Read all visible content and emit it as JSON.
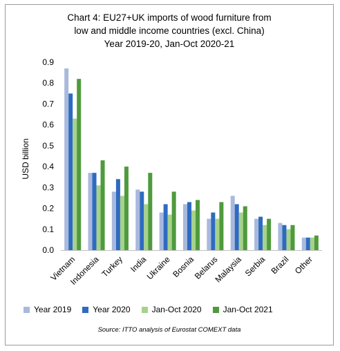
{
  "chart_data": {
    "type": "bar",
    "title": [
      "Chart 4: EU27+UK imports of wood furniture from",
      "low and middle income countries (excl. China)",
      "Year 2019-20, Jan-Oct 2020-21"
    ],
    "ylabel": "USD billion",
    "xlabel": "",
    "ylim": [
      0,
      0.9
    ],
    "yticks": [
      "0.0",
      "0.1",
      "0.2",
      "0.3",
      "0.4",
      "0.5",
      "0.6",
      "0.7",
      "0.8",
      "0.9"
    ],
    "grid": false,
    "legend_position": "bottom",
    "categories": [
      "Vietnam",
      "Indonesia",
      "Turkey",
      "India",
      "Ukraine",
      "Bosnia",
      "Belarus",
      "Malaysia",
      "Serbia",
      "Brazil",
      "Other"
    ],
    "series": [
      {
        "name": "Year 2019",
        "color": "#a9b9de",
        "values": [
          0.87,
          0.37,
          0.28,
          0.29,
          0.18,
          0.22,
          0.15,
          0.26,
          0.15,
          0.13,
          0.06
        ]
      },
      {
        "name": "Year 2020",
        "color": "#2e6bc0",
        "values": [
          0.75,
          0.37,
          0.34,
          0.28,
          0.22,
          0.23,
          0.18,
          0.22,
          0.16,
          0.12,
          0.06
        ]
      },
      {
        "name": "Jan-Oct 2020",
        "color": "#a6d28b",
        "values": [
          0.63,
          0.31,
          0.26,
          0.22,
          0.17,
          0.19,
          0.15,
          0.18,
          0.12,
          0.1,
          0.06
        ]
      },
      {
        "name": "Jan-Oct 2021",
        "color": "#4f9a3d",
        "values": [
          0.82,
          0.43,
          0.4,
          0.37,
          0.28,
          0.24,
          0.23,
          0.21,
          0.15,
          0.12,
          0.07
        ]
      }
    ],
    "source": "Source: ITTO analysis of Eurostat COMEXT data"
  }
}
